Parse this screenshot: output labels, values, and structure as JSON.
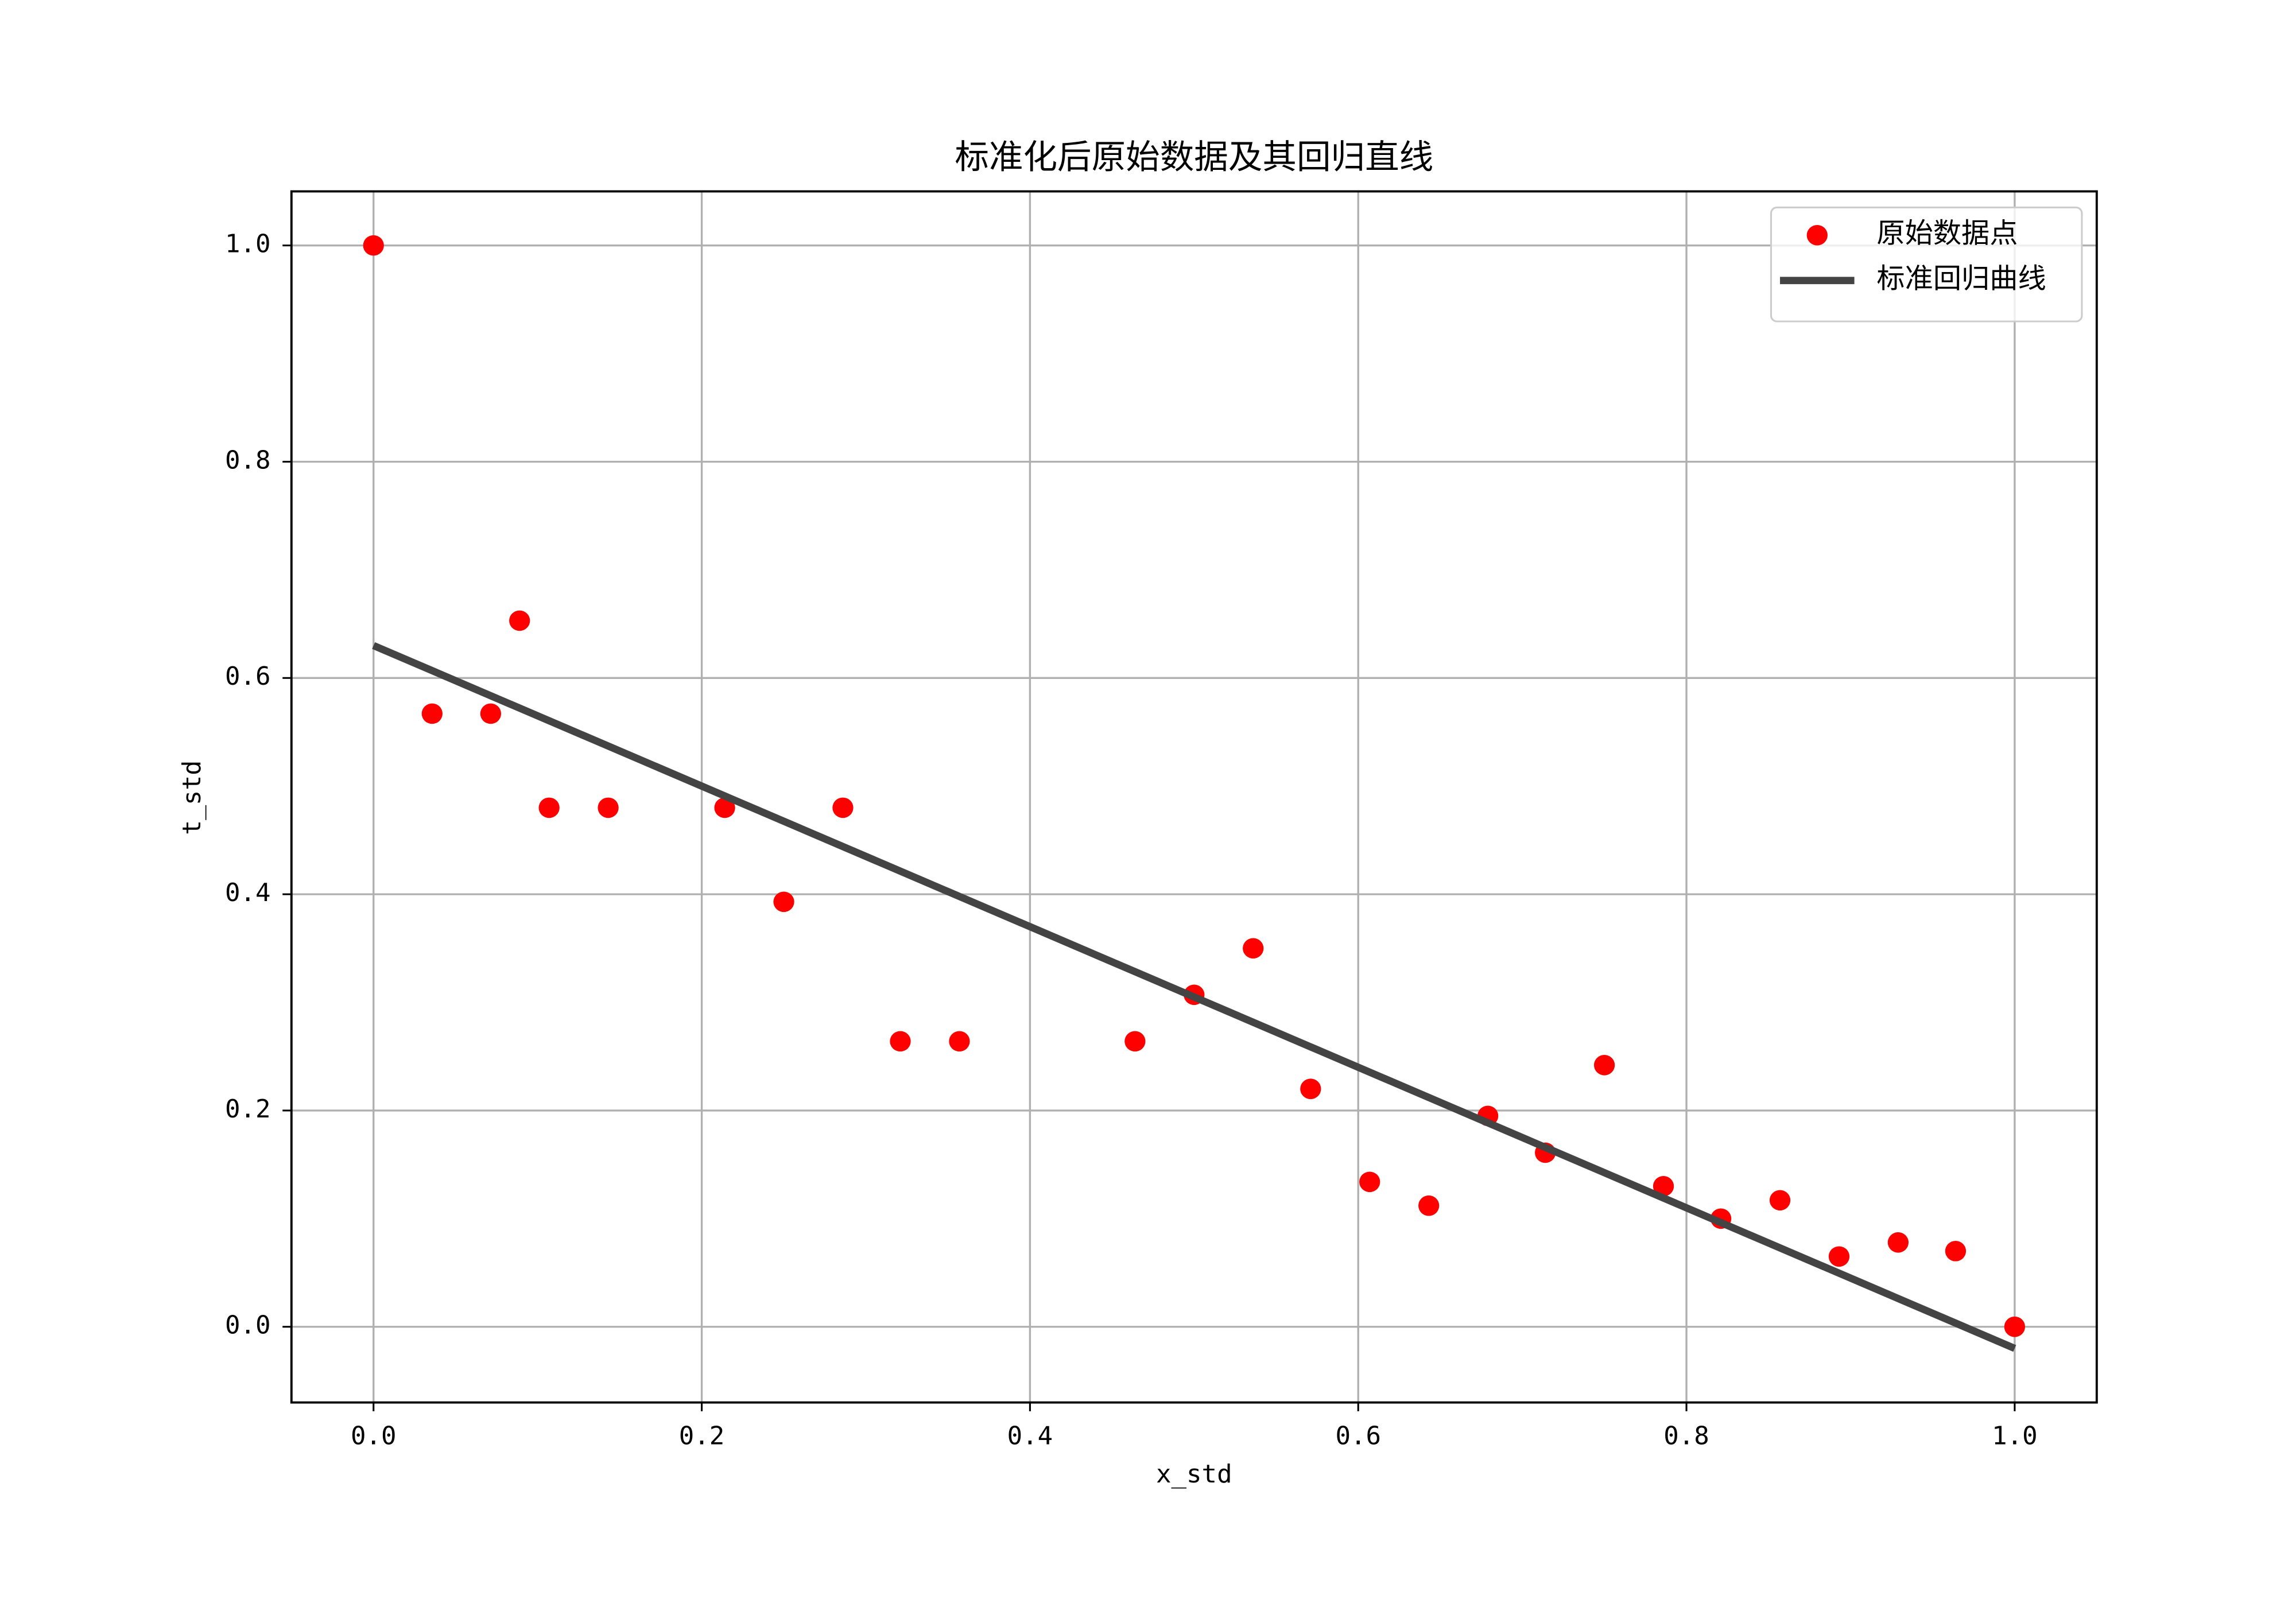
{
  "chart_data": {
    "type": "scatter",
    "title": "标准化后原始数据及其回归直线",
    "xlabel": "x_std",
    "ylabel": "t_std",
    "xlim": [
      -0.05,
      1.05
    ],
    "ylim": [
      -0.07,
      1.05
    ],
    "xticks": [
      {
        "value": 0,
        "label": "0.0"
      },
      0.2,
      0.4,
      0.6,
      0.8,
      {
        "value": 1,
        "label": "1.0"
      }
    ],
    "yticks": [
      {
        "value": 0,
        "label": "0.0"
      },
      0.2,
      0.4,
      0.6,
      0.8,
      {
        "value": 1,
        "label": "1.0"
      }
    ],
    "grid": true,
    "legend": "upper right",
    "series": [
      {
        "name": "原始数据点",
        "type": "scatter",
        "color": "#ff0000",
        "x": [
          0,
          0.0357,
          0.0714,
          0.089,
          0.107,
          0.143,
          0.214,
          0.25,
          0.286,
          0.321,
          0.357,
          0.464,
          0.5,
          0.536,
          0.571,
          0.607,
          0.643,
          0.679,
          0.714,
          0.75,
          0.786,
          0.821,
          0.857,
          0.893,
          0.929,
          0.964,
          1
        ],
        "values": [
          1,
          0.567,
          0.567,
          0.653,
          0.48,
          0.48,
          0.48,
          0.393,
          0.48,
          0.264,
          0.264,
          0.264,
          0.307,
          0.35,
          0.22,
          0.134,
          0.112,
          0.195,
          0.161,
          0.242,
          0.13,
          0.1,
          0.117,
          0.065,
          0.078,
          0.07,
          0
        ]
      },
      {
        "name": "标准回归曲线",
        "type": "line",
        "color": "#444444",
        "x": [
          0,
          1
        ],
        "values": [
          0.63,
          -0.02
        ]
      }
    ]
  }
}
